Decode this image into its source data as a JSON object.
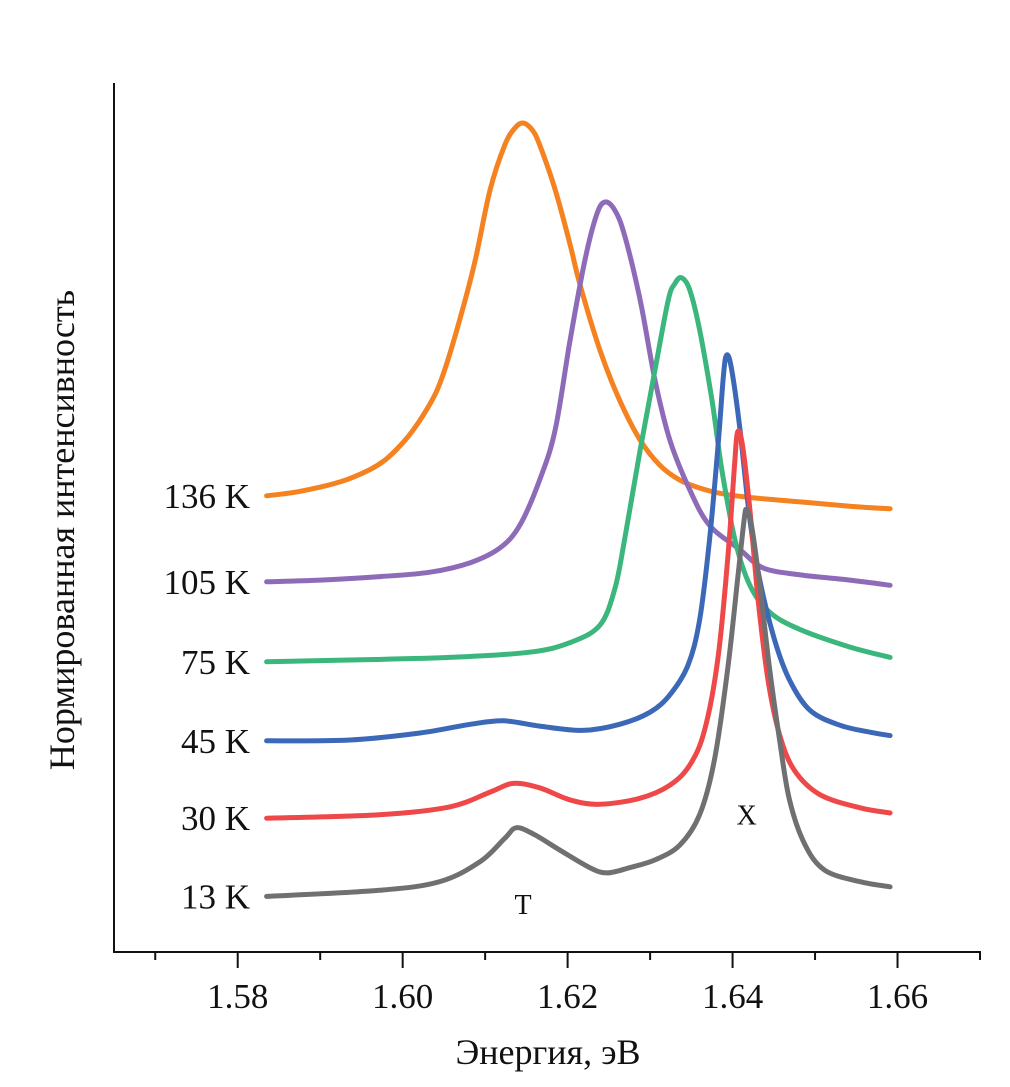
{
  "chart_data": {
    "type": "line",
    "title": "",
    "xlabel": "Энергия, эВ",
    "ylabel": "Нормированная интенсивность",
    "xlim": [
      1.565,
      1.67
    ],
    "ylim": [
      0,
      10
    ],
    "x_major_ticks": [
      1.58,
      1.6,
      1.62,
      1.64,
      1.66
    ],
    "x_tick_labels": [
      "1.58",
      "1.60",
      "1.62",
      "1.64",
      "1.66"
    ],
    "x_minor_ticks": [
      1.57,
      1.59,
      1.61,
      1.63,
      1.65,
      1.67
    ],
    "y_ticks": [],
    "grid": false,
    "legend": "labels to the left of each curve",
    "annotations": [
      {
        "text": "T",
        "x": 1.6146,
        "y": 0.55
      },
      {
        "text": "X",
        "x": 1.6417,
        "y": 1.58
      }
    ],
    "series": [
      {
        "name": "136 K",
        "color": "#F58220",
        "x": [
          1.5835,
          1.5875,
          1.5924,
          1.596,
          1.5981,
          1.6003,
          1.6021,
          1.6039,
          1.6051,
          1.6069,
          1.6088,
          1.6106,
          1.6124,
          1.6136,
          1.6146,
          1.6157,
          1.6166,
          1.6185,
          1.6203,
          1.6215,
          1.6239,
          1.6263,
          1.6288,
          1.6312,
          1.6336,
          1.636,
          1.6384,
          1.6421,
          1.6482,
          1.6542,
          1.6591
        ],
        "y": [
          5.25,
          5.3,
          5.41,
          5.55,
          5.68,
          5.89,
          6.12,
          6.41,
          6.7,
          7.27,
          7.96,
          8.77,
          9.29,
          9.48,
          9.54,
          9.46,
          9.29,
          8.77,
          8.14,
          7.68,
          6.93,
          6.35,
          5.89,
          5.6,
          5.43,
          5.34,
          5.28,
          5.23,
          5.18,
          5.13,
          5.1
        ]
      },
      {
        "name": "105 K",
        "color": "#8E6BB8",
        "x": [
          1.5835,
          1.59,
          1.5972,
          1.6033,
          1.6082,
          1.6118,
          1.6142,
          1.6166,
          1.6185,
          1.6203,
          1.6221,
          1.6235,
          1.6245,
          1.6257,
          1.6269,
          1.6288,
          1.6306,
          1.6324,
          1.6348,
          1.6372,
          1.6409,
          1.6437,
          1.6482,
          1.6542,
          1.6591
        ],
        "y": [
          4.26,
          4.28,
          4.32,
          4.37,
          4.48,
          4.65,
          4.91,
          5.43,
          6.01,
          7.04,
          7.96,
          8.48,
          8.63,
          8.54,
          8.25,
          7.5,
          6.58,
          5.89,
          5.32,
          4.91,
          4.63,
          4.42,
          4.34,
          4.28,
          4.22
        ]
      },
      {
        "name": "75 K",
        "color": "#3BB77E",
        "x": [
          1.5835,
          1.5936,
          1.6057,
          1.6154,
          1.6203,
          1.6239,
          1.6257,
          1.6269,
          1.6288,
          1.6306,
          1.6322,
          1.633,
          1.6338,
          1.6348,
          1.636,
          1.6375,
          1.6387,
          1.6403,
          1.6421,
          1.6445,
          1.6482,
          1.6542,
          1.6591
        ],
        "y": [
          3.34,
          3.36,
          3.39,
          3.45,
          3.56,
          3.76,
          4.17,
          4.74,
          5.78,
          6.7,
          7.5,
          7.69,
          7.76,
          7.62,
          7.16,
          6.35,
          5.55,
          4.74,
          4.22,
          3.91,
          3.71,
          3.51,
          3.39
        ]
      },
      {
        "name": "45 K",
        "color": "#3C68B8",
        "x": [
          1.5835,
          1.5936,
          1.6021,
          1.6082,
          1.6122,
          1.6166,
          1.6218,
          1.6263,
          1.63,
          1.6324,
          1.6346,
          1.636,
          1.6372,
          1.6382,
          1.6389,
          1.6393,
          1.6399,
          1.6409,
          1.6421,
          1.6433,
          1.6451,
          1.6469,
          1.6494,
          1.653,
          1.6566,
          1.6591
        ],
        "y": [
          2.43,
          2.44,
          2.52,
          2.62,
          2.66,
          2.6,
          2.55,
          2.62,
          2.76,
          2.96,
          3.3,
          3.82,
          4.74,
          5.78,
          6.64,
          6.87,
          6.7,
          6.01,
          4.97,
          4.28,
          3.59,
          3.13,
          2.78,
          2.61,
          2.53,
          2.49
        ]
      },
      {
        "name": "30 K",
        "color": "#EF4848",
        "x": [
          1.5835,
          1.5972,
          1.6057,
          1.6106,
          1.6134,
          1.6166,
          1.6203,
          1.6239,
          1.6288,
          1.6324,
          1.6348,
          1.6366,
          1.6382,
          1.6394,
          1.6402,
          1.6406,
          1.6412,
          1.6421,
          1.6431,
          1.6443,
          1.6457,
          1.6475,
          1.6506,
          1.6554,
          1.6591
        ],
        "y": [
          1.54,
          1.58,
          1.67,
          1.84,
          1.94,
          1.89,
          1.75,
          1.7,
          1.77,
          1.92,
          2.15,
          2.55,
          3.36,
          4.51,
          5.55,
          5.98,
          5.83,
          5.09,
          4.05,
          3.13,
          2.5,
          2.09,
          1.81,
          1.66,
          1.6
        ]
      },
      {
        "name": "13 K",
        "color": "#707072",
        "x": [
          1.5835,
          1.5972,
          1.6045,
          1.6094,
          1.6124,
          1.6138,
          1.616,
          1.6191,
          1.6227,
          1.6248,
          1.6275,
          1.6306,
          1.6336,
          1.636,
          1.6378,
          1.6394,
          1.6406,
          1.6414,
          1.6417,
          1.6423,
          1.6433,
          1.6445,
          1.6457,
          1.6469,
          1.6488,
          1.6512,
          1.6554,
          1.6591
        ],
        "y": [
          0.64,
          0.71,
          0.81,
          1.04,
          1.31,
          1.43,
          1.35,
          1.17,
          0.97,
          0.91,
          0.97,
          1.06,
          1.23,
          1.58,
          2.21,
          3.25,
          4.28,
          4.97,
          5.09,
          4.91,
          4.22,
          3.25,
          2.44,
          1.75,
          1.23,
          0.94,
          0.81,
          0.75
        ]
      }
    ]
  }
}
